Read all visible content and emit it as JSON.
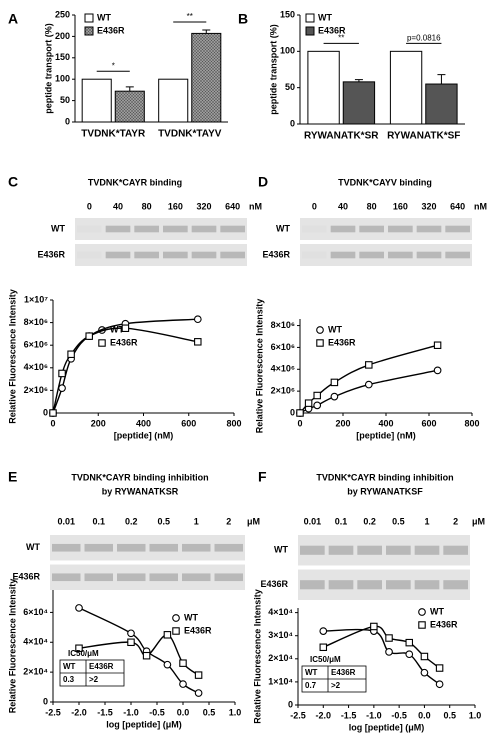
{
  "chart_data": [
    {
      "panel": "A",
      "type": "bar",
      "ylabel": "peptide transport (%)",
      "categories": [
        "TVDNK*TAYR",
        "TVDNK*TAYV"
      ],
      "series": [
        {
          "name": "WT",
          "color": "#ffffff",
          "values": [
            100,
            100
          ],
          "errors": [
            0,
            0
          ]
        },
        {
          "name": "E436R",
          "color": "#8a8a8a",
          "values": [
            72,
            207
          ],
          "errors": [
            10,
            8
          ]
        }
      ],
      "annotations": [
        "*",
        "**"
      ],
      "ylim": [
        0,
        250
      ],
      "yticks": [
        0,
        50,
        100,
        150,
        200,
        250
      ]
    },
    {
      "panel": "B",
      "type": "bar",
      "ylabel": "peptide transport (%)",
      "categories": [
        "RYWANATK*SR",
        "RYWANATK*SF"
      ],
      "series": [
        {
          "name": "WT",
          "color": "#ffffff",
          "values": [
            100,
            100
          ],
          "errors": [
            0,
            0
          ]
        },
        {
          "name": "E436R",
          "color": "#555555",
          "values": [
            58,
            55
          ],
          "errors": [
            3,
            13
          ]
        }
      ],
      "annotations": [
        "**",
        "p=0.0816"
      ],
      "ylim": [
        0,
        150
      ],
      "yticks": [
        0,
        50,
        100,
        150
      ]
    },
    {
      "panel": "C",
      "type": "line",
      "title": "TVDNK*CAYR binding",
      "gel": {
        "lanes": [
          "0",
          "40",
          "80",
          "160",
          "320",
          "640"
        ],
        "unit": "nM",
        "rows": [
          "WT",
          "E436R"
        ]
      },
      "xlabel": "[peptide] (nM)",
      "ylabel": "Relative Fluorescence Intensity",
      "x": [
        0,
        40,
        80,
        160,
        320,
        640
      ],
      "series": [
        {
          "name": "WT",
          "marker": "circle",
          "values": [
            0,
            2200000,
            4800000,
            6800000,
            7900000,
            8300000
          ]
        },
        {
          "name": "E436R",
          "marker": "square",
          "values": [
            0,
            3500000,
            5200000,
            6800000,
            7500000,
            6300000
          ]
        }
      ],
      "xlim": [
        0,
        800
      ],
      "xticks": [
        0,
        200,
        400,
        600,
        800
      ],
      "ylim": [
        0,
        10000000
      ],
      "yticks": [
        0,
        {
          "value": 2000000,
          "label": "2×10⁶"
        },
        {
          "value": 4000000,
          "label": "4×10⁶"
        },
        {
          "value": 6000000,
          "label": "6×10⁶"
        },
        {
          "value": 8000000,
          "label": "8×10⁶"
        },
        {
          "value": 10000000,
          "label": "1×10⁷"
        }
      ]
    },
    {
      "panel": "D",
      "type": "line",
      "title": "TVDNK*CAYV binding",
      "gel": {
        "lanes": [
          "0",
          "40",
          "80",
          "160",
          "320",
          "640"
        ],
        "unit": "nM",
        "rows": [
          "WT",
          "E436R"
        ]
      },
      "xlabel": "[peptide] (nM)",
      "ylabel": "Relative Fluorescence Intensity",
      "x": [
        0,
        40,
        80,
        160,
        320,
        640
      ],
      "series": [
        {
          "name": "WT",
          "marker": "circle",
          "values": [
            0,
            400000,
            700000,
            1500000,
            2600000,
            3900000
          ]
        },
        {
          "name": "E436R",
          "marker": "square",
          "values": [
            0,
            900000,
            1600000,
            2800000,
            4400000,
            6200000
          ]
        }
      ],
      "xlim": [
        0,
        800
      ],
      "xticks": [
        0,
        200,
        400,
        600,
        800
      ],
      "ylim": [
        0,
        8600000
      ],
      "yticks": [
        0,
        {
          "value": 2000000,
          "label": "2×10⁶"
        },
        {
          "value": 4000000,
          "label": "4×10⁶"
        },
        {
          "value": 6000000,
          "label": "6×10⁶"
        },
        {
          "value": 8000000,
          "label": "8×10⁶"
        }
      ]
    },
    {
      "panel": "E",
      "type": "line",
      "title": [
        "TVDNK*CAYR binding inhibition",
        "by RYWANATKSR"
      ],
      "gel": {
        "lanes": [
          "0.01",
          "0.1",
          "0.2",
          "0.5",
          "1",
          "2"
        ],
        "unit": "μM",
        "rows": [
          "WT",
          "E436R"
        ]
      },
      "xlabel": "log [peptide] (μM)",
      "ylabel": "Relative Fluorescence Intensity",
      "x": [
        -2,
        -1,
        -0.7,
        -0.3,
        0,
        0.3
      ],
      "series": [
        {
          "name": "WT",
          "marker": "circle",
          "values": [
            63000,
            46000,
            34000,
            25000,
            12000,
            6000
          ]
        },
        {
          "name": "E436R",
          "marker": "square",
          "values": [
            36000,
            40000,
            31000,
            45000,
            26000,
            18000
          ]
        }
      ],
      "ic50_table": {
        "title": "IC50/μM",
        "header": [
          "WT",
          "E436R"
        ],
        "values": [
          0.3,
          ">2"
        ]
      },
      "xlim": [
        -2.5,
        1.0
      ],
      "xticks": [
        -2.5,
        {
          "value": -2,
          "label": "-2.0"
        },
        -1.5,
        {
          "value": -1,
          "label": "-1.0"
        },
        -0.5,
        {
          "value": 0,
          "label": "0.0"
        },
        0.5,
        {
          "value": 1,
          "label": "1.0"
        }
      ],
      "ylim": [
        0,
        75000
      ],
      "yticks": [
        0,
        {
          "value": 20000,
          "label": "2×10⁴"
        },
        {
          "value": 40000,
          "label": "4×10⁴"
        },
        {
          "value": 60000,
          "label": "6×10⁴"
        }
      ]
    },
    {
      "panel": "F",
      "type": "line",
      "title": [
        "TVDNK*CAYR binding inhibition",
        "by RYWANATKSF"
      ],
      "gel": {
        "lanes": [
          "0.01",
          "0.1",
          "0.2",
          "0.5",
          "1",
          "2"
        ],
        "unit": "μM",
        "rows": [
          "WT",
          "E436R"
        ]
      },
      "xlabel": "log [peptide] (μM)",
      "ylabel": "Relative Fluorescence Intensity",
      "x": [
        -2,
        -1,
        -0.7,
        -0.3,
        0,
        0.3
      ],
      "series": [
        {
          "name": "WT",
          "marker": "circle",
          "values": [
            32000,
            32000,
            23000,
            22000,
            14000,
            9000
          ]
        },
        {
          "name": "E436R",
          "marker": "square",
          "values": [
            25000,
            34000,
            29000,
            27000,
            21000,
            16000
          ]
        }
      ],
      "ic50_table": {
        "title": "IC50/μM",
        "header": [
          "WT",
          "E436R"
        ],
        "values": [
          0.7,
          ">2"
        ]
      },
      "xlim": [
        -2.5,
        1.0
      ],
      "xticks": [
        -2.5,
        {
          "value": -2,
          "label": "-2.0"
        },
        -1.5,
        {
          "value": -1,
          "label": "-1.0"
        },
        -0.5,
        {
          "value": 0,
          "label": "0.0"
        },
        0.5,
        {
          "value": 1,
          "label": "1.0"
        }
      ],
      "ylim": [
        0,
        42000
      ],
      "yticks": [
        0,
        {
          "value": 10000,
          "label": "1×10⁴"
        },
        {
          "value": 20000,
          "label": "2×10⁴"
        },
        {
          "value": 30000,
          "label": "3×10⁴"
        },
        {
          "value": 40000,
          "label": "4×10⁴"
        }
      ]
    }
  ]
}
